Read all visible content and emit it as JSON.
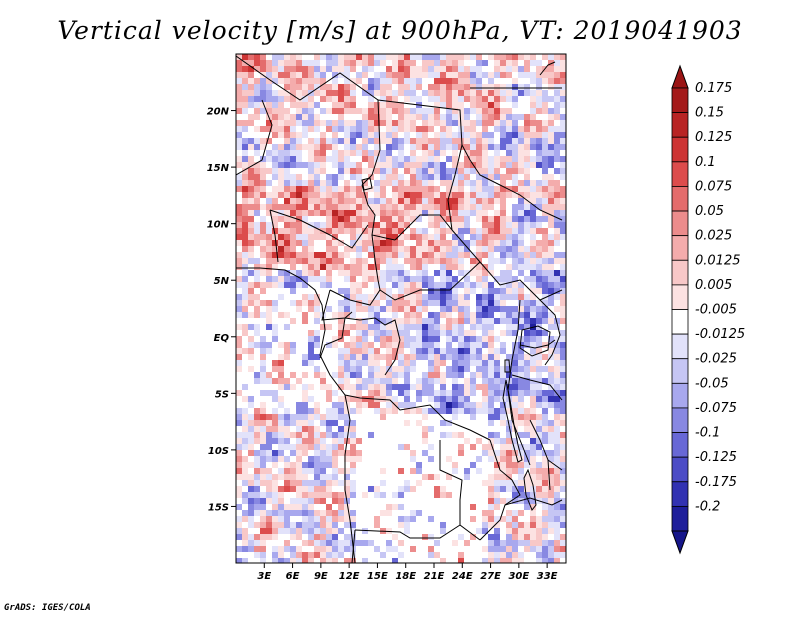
{
  "chart_data": {
    "type": "heatmap",
    "title": "Vertical velocity [m/s] at 900hPa, VT: 2019041903",
    "field": "Vertical velocity",
    "units": "m/s",
    "level": "900hPa",
    "valid_time": "2019041903",
    "xlim": [
      0,
      35
    ],
    "ylim": [
      -20,
      25
    ],
    "x_ticks": [
      {
        "value": 3,
        "label": "3E"
      },
      {
        "value": 6,
        "label": "6E"
      },
      {
        "value": 9,
        "label": "9E"
      },
      {
        "value": 12,
        "label": "12E"
      },
      {
        "value": 15,
        "label": "15E"
      },
      {
        "value": 18,
        "label": "18E"
      },
      {
        "value": 21,
        "label": "21E"
      },
      {
        "value": 24,
        "label": "24E"
      },
      {
        "value": 27,
        "label": "27E"
      },
      {
        "value": 30,
        "label": "30E"
      },
      {
        "value": 33,
        "label": "33E"
      }
    ],
    "y_ticks": [
      {
        "value": 20,
        "label": "20N"
      },
      {
        "value": 15,
        "label": "15N"
      },
      {
        "value": 10,
        "label": "10N"
      },
      {
        "value": 5,
        "label": "5N"
      },
      {
        "value": 0,
        "label": "EQ"
      },
      {
        "value": -5,
        "label": "5S"
      },
      {
        "value": -10,
        "label": "10S"
      },
      {
        "value": -15,
        "label": "15S"
      }
    ],
    "colorbar": {
      "levels": [
        {
          "label": "0.175",
          "color": "#a41a1a"
        },
        {
          "label": "0.15",
          "color": "#b82424"
        },
        {
          "label": "0.125",
          "color": "#cd3434"
        },
        {
          "label": "0.1",
          "color": "#dc4c4c"
        },
        {
          "label": "0.075",
          "color": "#e46c6c"
        },
        {
          "label": "0.05",
          "color": "#ec8c8c"
        },
        {
          "label": "0.025",
          "color": "#f4acac"
        },
        {
          "label": "0.0125",
          "color": "#f8c8c8"
        },
        {
          "label": "0.005",
          "color": "#fce2e2"
        },
        {
          "label": "-0.005",
          "color": "#ffffff"
        },
        {
          "label": "-0.0125",
          "color": "#e2e2fa"
        },
        {
          "label": "-0.025",
          "color": "#c6c6f4"
        },
        {
          "label": "-0.05",
          "color": "#a8a8ee"
        },
        {
          "label": "-0.075",
          "color": "#8888e2"
        },
        {
          "label": "-0.1",
          "color": "#6868d6"
        },
        {
          "label": "-0.125",
          "color": "#4c4cc6"
        },
        {
          "label": "-0.175",
          "color": "#3232b2"
        },
        {
          "label": "-0.2",
          "color": "#1e1e9a"
        }
      ],
      "top_cap_color": "#9a1414",
      "bottom_cap_color": "#16168a"
    }
  },
  "footer": "GrADS: IGES/COLA"
}
